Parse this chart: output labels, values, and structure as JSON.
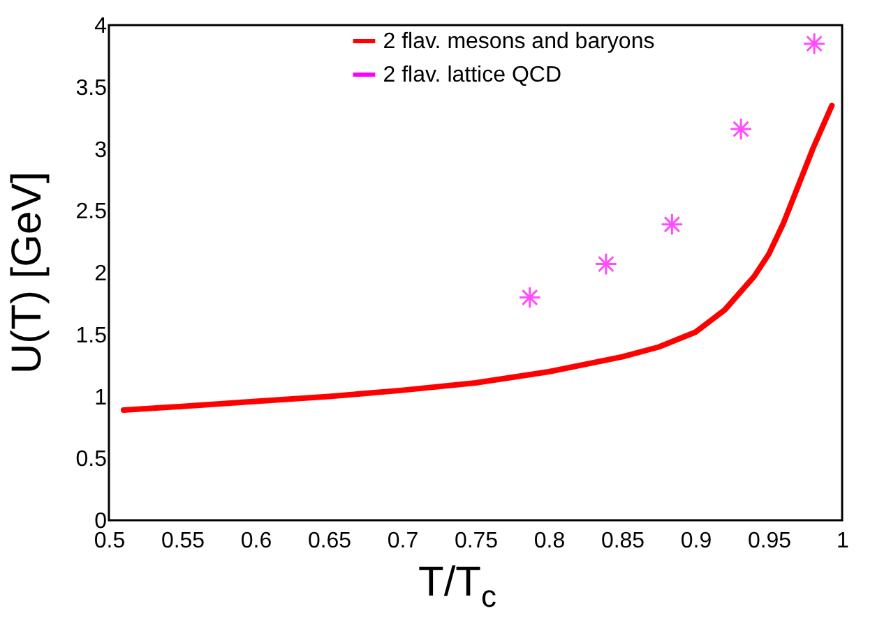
{
  "chart_data": {
    "type": "line",
    "xlabel": "T/T$_{c}$",
    "ylabel": "U(T) [GeV]",
    "xlim": [
      0.5,
      1
    ],
    "xticks": [
      0.5,
      0.55,
      0.6,
      0.65,
      0.7,
      0.75,
      0.8,
      0.85,
      0.9,
      0.95,
      1
    ],
    "ylim": [
      0,
      4
    ],
    "yticks": [
      0,
      0.5,
      1,
      1.5,
      2,
      2.5,
      3,
      3.5,
      4
    ],
    "legend": "top",
    "grid": false,
    "series": [
      {
        "name": "2 flav. mesons and baryons",
        "color": "#ff0000",
        "marker": "none",
        "line_style": "solid",
        "x": [
          0.51,
          0.55,
          0.6,
          0.65,
          0.7,
          0.75,
          0.8,
          0.85,
          0.875,
          0.9,
          0.92,
          0.94,
          0.95,
          0.96,
          0.97,
          0.98,
          0.993
        ],
        "values": [
          0.89,
          0.92,
          0.96,
          1.0,
          1.05,
          1.11,
          1.2,
          1.32,
          1.4,
          1.52,
          1.7,
          1.97,
          2.15,
          2.4,
          2.7,
          3.0,
          3.35
        ]
      },
      {
        "name": "2 flav. lattice QCD",
        "type": "scatter",
        "color": "#ff00ff",
        "marker": "cross",
        "x": [
          0.787,
          0.839,
          0.884,
          0.931,
          0.981
        ],
        "values": [
          1.8,
          2.07,
          2.39,
          3.16,
          3.85
        ]
      }
    ]
  }
}
